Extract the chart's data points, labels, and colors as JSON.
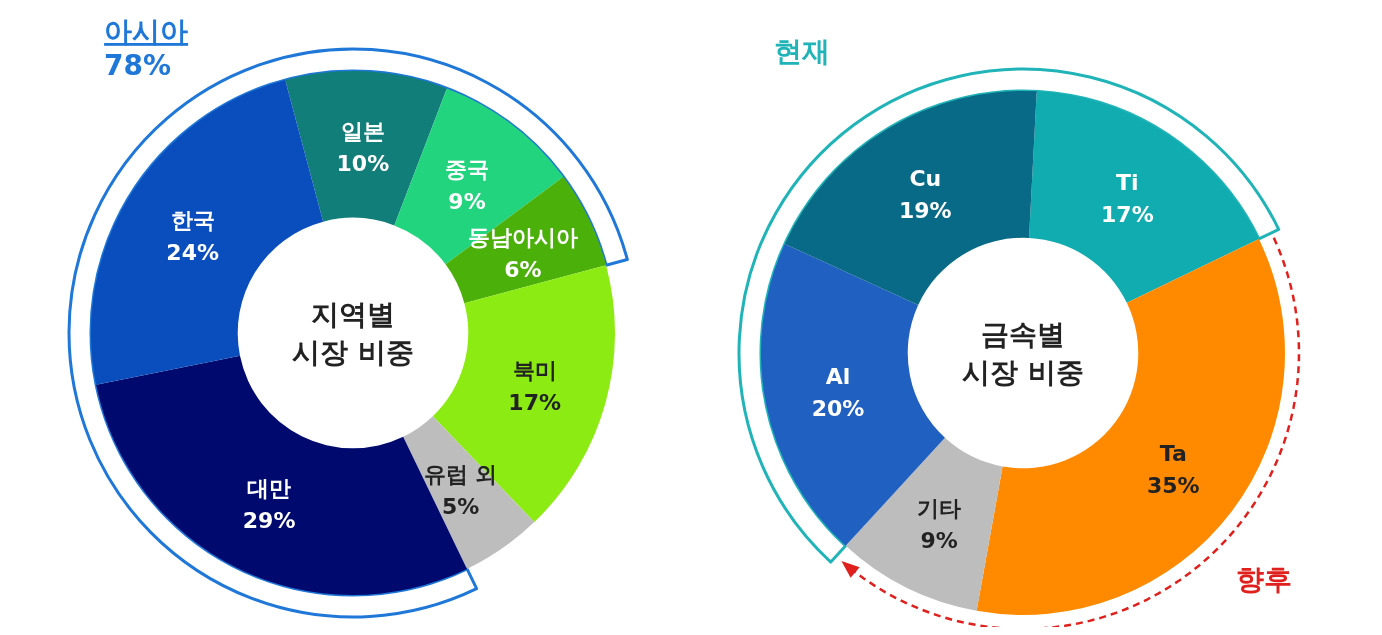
{
  "chart_data": [
    {
      "type": "donut",
      "title": "지역별\n시장 비중",
      "categories": [
        "일본",
        "중국",
        "동남아시아",
        "북미",
        "유럽 외",
        "대만",
        "한국"
      ],
      "values": [
        10,
        9,
        6,
        17,
        5,
        29,
        24
      ],
      "colors": [
        "#127e7a",
        "#22d47e",
        "#4cb00a",
        "#8ceb12",
        "#bdbdbd",
        "#000a6e",
        "#0a4dbd"
      ],
      "value_labels": [
        "10%",
        "9%",
        "6%",
        "17%",
        "5%",
        "29%",
        "24%"
      ],
      "annotations": [
        "아시아\n78%"
      ]
    },
    {
      "type": "donut",
      "title": "금속별\n시장 비중",
      "categories": [
        "Ti",
        "Ta",
        "기타",
        "Al",
        "Cu"
      ],
      "values": [
        17,
        35,
        9,
        20,
        19
      ],
      "colors": [
        "#10acb0",
        "#ff8a00",
        "#bdbdbd",
        "#2060c0",
        "#086a86"
      ],
      "value_labels": [
        "17%",
        "35%",
        "9%",
        "20%",
        "19%"
      ],
      "annotations": [
        "현재",
        "향후"
      ]
    }
  ]
}
